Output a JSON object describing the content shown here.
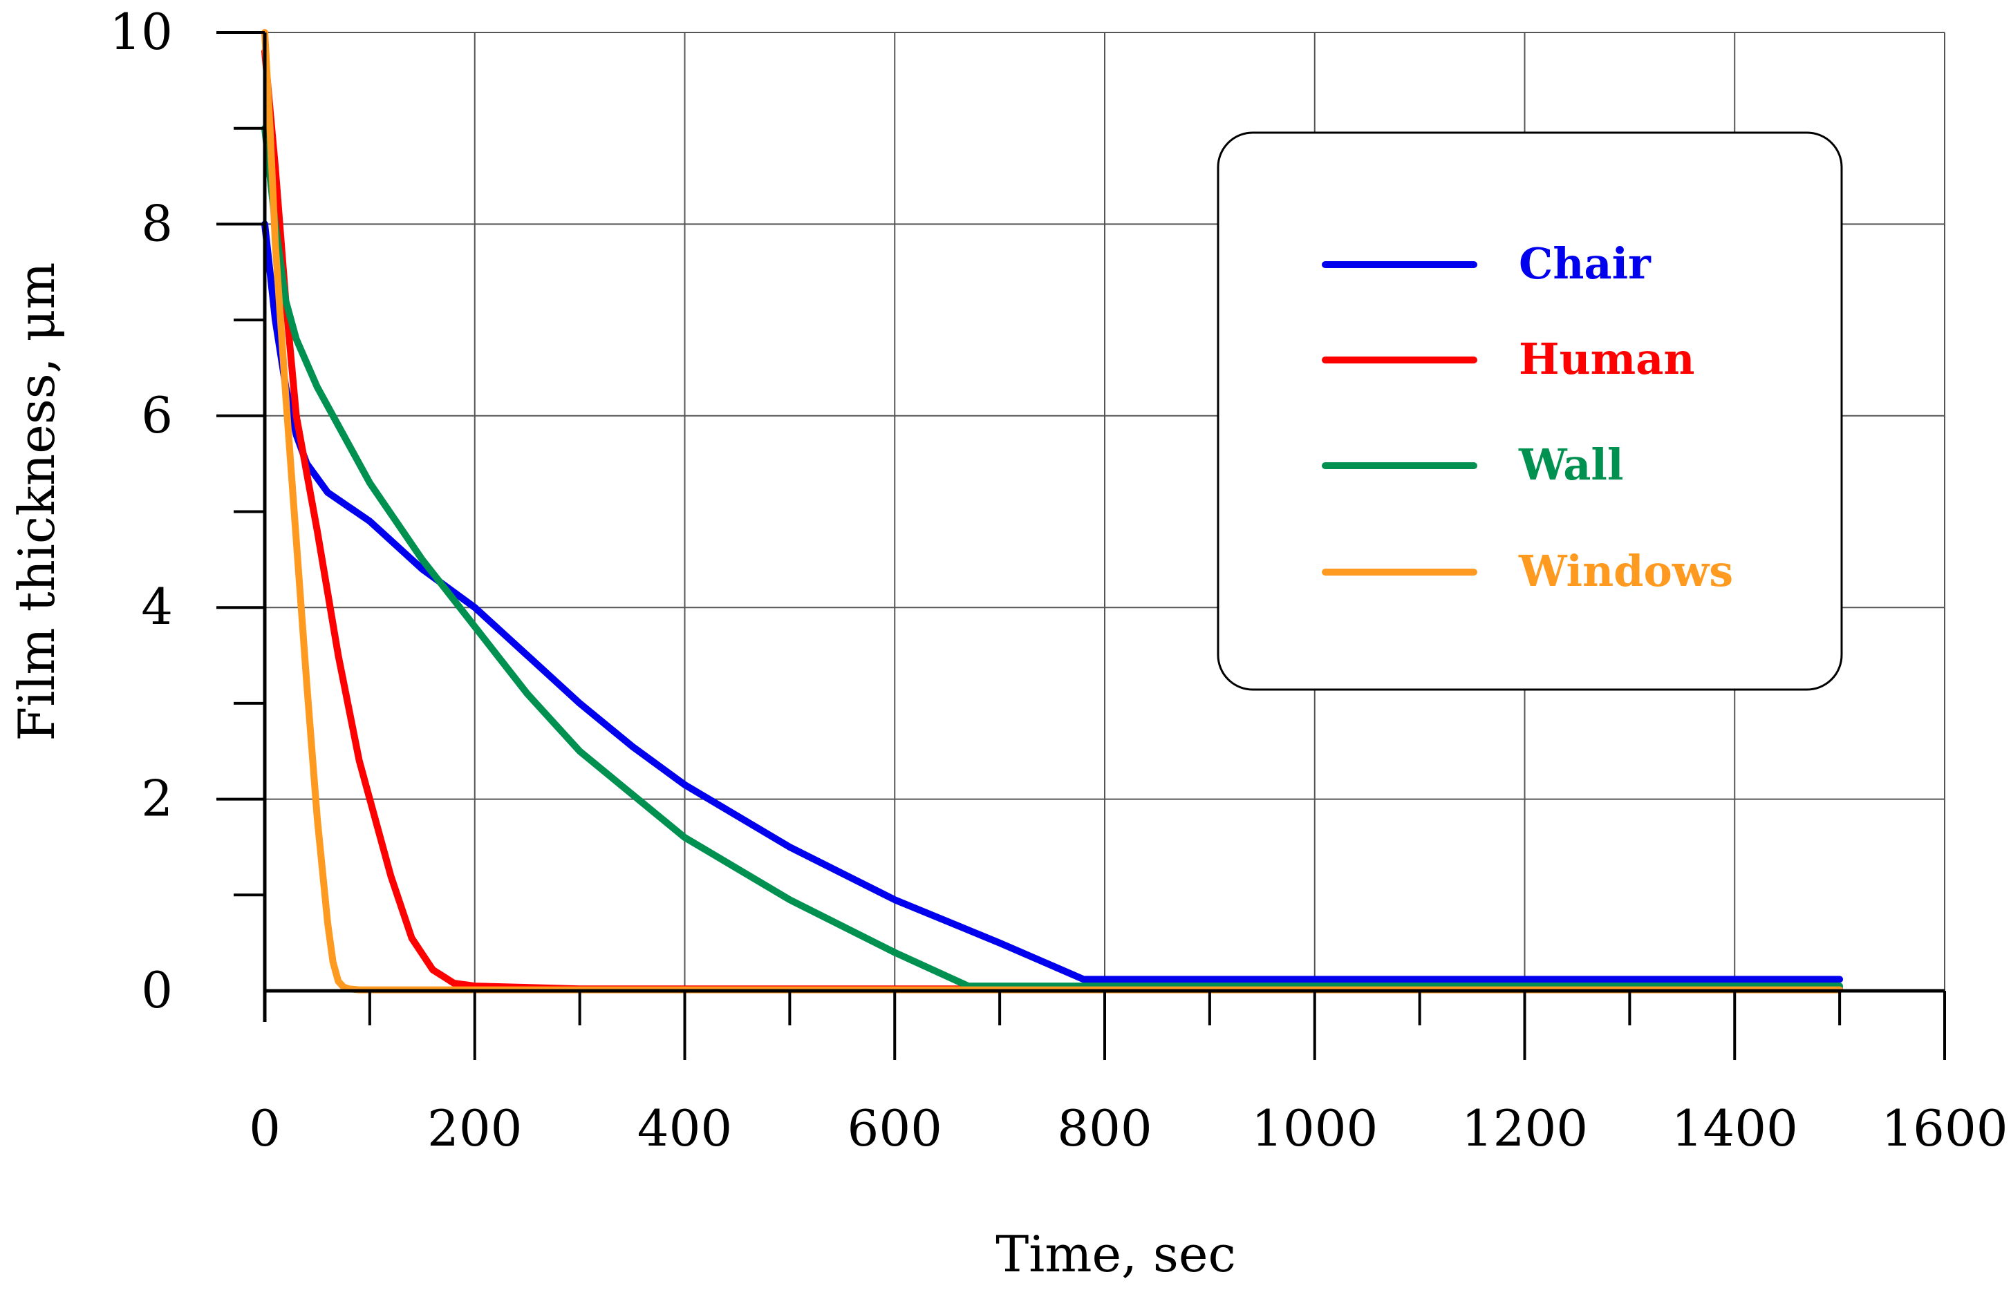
{
  "chart_data": {
    "type": "line",
    "title": "",
    "xlabel": "Time, sec",
    "ylabel": "Film thickness, μm",
    "xlim": [
      0,
      1600
    ],
    "ylim": [
      0,
      10
    ],
    "xticks": [
      0,
      200,
      400,
      600,
      800,
      1000,
      1200,
      1400,
      1600
    ],
    "yticks": [
      0,
      2,
      4,
      6,
      8,
      10
    ],
    "x_tick_labels": [
      "0",
      "200",
      "400",
      "600",
      "800",
      "1000",
      "1200",
      "1400",
      "1600"
    ],
    "y_tick_labels": [
      "0",
      "2",
      "4",
      "6",
      "8",
      "10"
    ],
    "grid": true,
    "legend_position": "top-right",
    "series": [
      {
        "name": "Chair",
        "color": "#0000ee",
        "x": [
          0,
          10,
          20,
          30,
          40,
          60,
          80,
          100,
          150,
          200,
          250,
          300,
          350,
          400,
          500,
          600,
          700,
          780,
          1000,
          1200,
          1500
        ],
        "y": [
          8.0,
          7.0,
          6.3,
          5.8,
          5.5,
          5.2,
          5.05,
          4.9,
          4.4,
          4.0,
          3.5,
          3.0,
          2.55,
          2.15,
          1.5,
          0.95,
          0.5,
          0.12,
          0.12,
          0.12,
          0.12
        ]
      },
      {
        "name": "Human",
        "color": "#ff0000",
        "x": [
          0,
          10,
          20,
          30,
          50,
          70,
          90,
          100,
          120,
          140,
          160,
          180,
          200,
          300,
          600,
          1000,
          1500
        ],
        "y": [
          9.8,
          8.6,
          7.2,
          6.0,
          4.8,
          3.5,
          2.4,
          2.0,
          1.2,
          0.55,
          0.22,
          0.08,
          0.05,
          0.02,
          0.02,
          0.02,
          0.02
        ]
      },
      {
        "name": "Wall",
        "color": "#009050",
        "x": [
          0,
          10,
          20,
          30,
          50,
          70,
          90,
          100,
          150,
          200,
          250,
          300,
          400,
          500,
          600,
          670,
          800,
          1000,
          1500
        ],
        "y": [
          9.0,
          8.0,
          7.2,
          6.8,
          6.3,
          5.9,
          5.5,
          5.3,
          4.5,
          3.8,
          3.1,
          2.5,
          1.6,
          0.95,
          0.4,
          0.05,
          0.05,
          0.05,
          0.05
        ]
      },
      {
        "name": "Windows",
        "color": "#ff9a20",
        "x": [
          0,
          5,
          10,
          20,
          30,
          40,
          50,
          60,
          65,
          70,
          75,
          80,
          90,
          120,
          200,
          500,
          1000,
          1500
        ],
        "y": [
          10.0,
          9.0,
          7.8,
          6.2,
          4.7,
          3.2,
          1.8,
          0.7,
          0.3,
          0.1,
          0.04,
          0.02,
          0.01,
          0.01,
          0.01,
          0.01,
          0.01,
          0.01
        ]
      }
    ]
  }
}
